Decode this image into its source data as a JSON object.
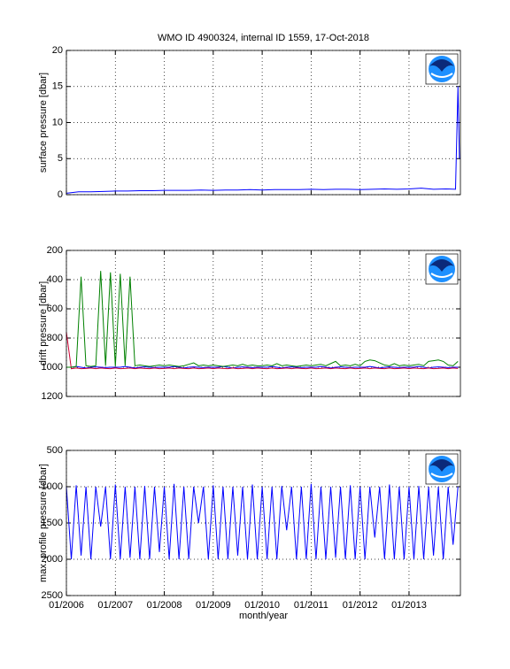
{
  "chart_data": [
    {
      "type": "line",
      "title": "WMO ID 4900324, internal ID 1559, 17-Oct-2018",
      "y_label": "surface pressure [dbar]",
      "x": [
        2006,
        2006.25,
        2006.5,
        2006.75,
        2007,
        2007.25,
        2007.5,
        2007.75,
        2008,
        2008.25,
        2008.5,
        2008.75,
        2009,
        2009.25,
        2009.5,
        2009.75,
        2010,
        2010.25,
        2010.5,
        2010.75,
        2011,
        2011.25,
        2011.5,
        2011.75,
        2012,
        2012.25,
        2012.5,
        2012.75,
        2013,
        2013.25,
        2013.5,
        2013.75,
        2013.95,
        2014,
        2014.03
      ],
      "series": [
        {
          "color": "#0000ff",
          "values": [
            0.2,
            0.4,
            0.4,
            0.45,
            0.5,
            0.5,
            0.55,
            0.55,
            0.6,
            0.6,
            0.6,
            0.65,
            0.6,
            0.65,
            0.65,
            0.7,
            0.65,
            0.7,
            0.7,
            0.7,
            0.75,
            0.7,
            0.75,
            0.75,
            0.7,
            0.75,
            0.8,
            0.75,
            0.8,
            0.9,
            0.75,
            0.8,
            0.75,
            15,
            5
          ]
        }
      ],
      "xlim": [
        2006,
        2014.05
      ],
      "xticks": [
        2006,
        2007,
        2008,
        2009,
        2010,
        2011,
        2012,
        2013
      ],
      "ylim": [
        0,
        20
      ],
      "yticks": [
        0,
        5,
        10,
        15,
        20
      ],
      "grid": true
    },
    {
      "type": "line",
      "y_label": "drift pressure [dbar]",
      "x": [
        2006,
        2006.1,
        2006.2,
        2006.3,
        2006.4,
        2006.5,
        2006.6,
        2006.7,
        2006.8,
        2006.9,
        2007,
        2007.1,
        2007.2,
        2007.3,
        2007.4,
        2007.5,
        2007.6,
        2007.7,
        2007.8,
        2007.9,
        2008,
        2008.1,
        2008.2,
        2008.3,
        2008.4,
        2008.5,
        2008.6,
        2008.7,
        2008.8,
        2008.9,
        2009,
        2009.1,
        2009.2,
        2009.3,
        2009.4,
        2009.5,
        2009.6,
        2009.7,
        2009.8,
        2009.9,
        2010,
        2010.1,
        2010.2,
        2010.3,
        2010.4,
        2010.5,
        2010.6,
        2010.7,
        2010.8,
        2010.9,
        2011,
        2011.1,
        2011.2,
        2011.3,
        2011.4,
        2011.5,
        2011.6,
        2011.7,
        2011.8,
        2011.9,
        2012,
        2012.1,
        2012.2,
        2012.3,
        2012.4,
        2012.5,
        2012.6,
        2012.7,
        2012.8,
        2012.9,
        2013,
        2013.1,
        2013.2,
        2013.3,
        2013.4,
        2013.5,
        2013.6,
        2013.7,
        2013.8,
        2013.9,
        2014
      ],
      "series": [
        {
          "color": "#0000ff",
          "values": [
            1000,
            1000,
            995,
            1000,
            1005,
            1000,
            998,
            1000,
            1002,
            1000,
            1000,
            1000,
            995,
            1000,
            1005,
            1000,
            998,
            1000,
            1002,
            1000,
            1000,
            1000,
            995,
            1000,
            1005,
            1000,
            998,
            1000,
            1002,
            1000,
            1000,
            1000,
            995,
            1000,
            1005,
            1000,
            998,
            1000,
            1002,
            1000,
            1000,
            1000,
            995,
            1000,
            1005,
            1000,
            998,
            1000,
            1002,
            1000,
            1000,
            1000,
            995,
            1000,
            1005,
            1000,
            998,
            1000,
            1002,
            1000,
            1000,
            1000,
            995,
            1000,
            1005,
            1000,
            998,
            1000,
            1002,
            1000,
            1000,
            1000,
            995,
            1000,
            1005,
            1000,
            998,
            1000,
            1002,
            1000,
            1000
          ]
        },
        {
          "color": "#cc0033",
          "values": [
            760,
            1010,
            1005,
            1010,
            1008,
            1005,
            1010,
            1005,
            1008,
            1010,
            1005,
            1010,
            1008,
            1005,
            1010,
            1005,
            1008,
            1010,
            1005,
            1010,
            1008,
            1005,
            1010,
            1005,
            1008,
            1010,
            1005,
            1010,
            1008,
            1005,
            1010,
            1005,
            1008,
            1010,
            1005,
            1010,
            1008,
            1005,
            1010,
            1005,
            1008,
            1010,
            1005,
            1010,
            1008,
            1005,
            1010,
            1005,
            1008,
            1010,
            1005,
            1010,
            1008,
            1005,
            1010,
            1005,
            1008,
            1010,
            1005,
            1010,
            1008,
            1005,
            1010,
            1005,
            1008,
            1010,
            1005,
            1010,
            1008,
            1005,
            1010,
            1005,
            1008,
            1010,
            1005,
            1010,
            1008,
            1005,
            1010,
            1005,
            1008
          ]
        },
        {
          "color": "#008000",
          "values": [
            1000,
            1000,
            995,
            380,
            990,
            995,
            990,
            340,
            990,
            350,
            995,
            360,
            990,
            380,
            990,
            985,
            990,
            995,
            990,
            985,
            990,
            985,
            990,
            995,
            990,
            980,
            970,
            990,
            985,
            990,
            985,
            990,
            995,
            990,
            985,
            990,
            980,
            990,
            985,
            990,
            990,
            985,
            990,
            975,
            990,
            985,
            990,
            995,
            990,
            985,
            990,
            985,
            980,
            990,
            975,
            960,
            990,
            985,
            990,
            980,
            990,
            960,
            950,
            955,
            970,
            985,
            990,
            975,
            990,
            985,
            990,
            985,
            980,
            990,
            960,
            955,
            950,
            960,
            985,
            990,
            960
          ]
        }
      ],
      "xlim": [
        2006,
        2014.05
      ],
      "xticks": [
        2006,
        2007,
        2008,
        2009,
        2010,
        2011,
        2012,
        2013
      ],
      "ylim": [
        1200,
        200
      ],
      "yticks": [
        200,
        400,
        600,
        800,
        1000,
        1200
      ],
      "grid": true
    },
    {
      "type": "line",
      "y_label": "max. profile pressure [dbar]",
      "x_label": "month/year",
      "x": [
        2006,
        2006.1,
        2006.2,
        2006.3,
        2006.4,
        2006.5,
        2006.6,
        2006.7,
        2006.8,
        2006.9,
        2007,
        2007.1,
        2007.2,
        2007.3,
        2007.4,
        2007.5,
        2007.6,
        2007.7,
        2007.8,
        2007.9,
        2008,
        2008.1,
        2008.2,
        2008.3,
        2008.4,
        2008.5,
        2008.6,
        2008.7,
        2008.8,
        2008.9,
        2009,
        2009.1,
        2009.2,
        2009.3,
        2009.4,
        2009.5,
        2009.6,
        2009.7,
        2009.8,
        2009.9,
        2010,
        2010.1,
        2010.2,
        2010.3,
        2010.4,
        2010.5,
        2010.6,
        2010.7,
        2010.8,
        2010.9,
        2011,
        2011.1,
        2011.2,
        2011.3,
        2011.4,
        2011.5,
        2011.6,
        2011.7,
        2011.8,
        2011.9,
        2012,
        2012.1,
        2012.2,
        2012.3,
        2012.4,
        2012.5,
        2012.6,
        2012.7,
        2012.8,
        2012.9,
        2013,
        2013.1,
        2013.2,
        2013.3,
        2013.4,
        2013.5,
        2013.6,
        2013.7,
        2013.8,
        2013.9,
        2014
      ],
      "series": [
        {
          "color": "#0000ff",
          "values": [
            1000,
            2000,
            980,
            1950,
            1000,
            2000,
            1000,
            1550,
            1000,
            2000,
            970,
            2000,
            1000,
            1980,
            1000,
            2000,
            990,
            2000,
            1000,
            1900,
            1000,
            2000,
            960,
            2000,
            1000,
            2000,
            1000,
            1500,
            1000,
            2000,
            980,
            2000,
            1000,
            2000,
            1000,
            1950,
            1000,
            2000,
            970,
            2000,
            1000,
            2000,
            1000,
            2000,
            990,
            1600,
            1000,
            2000,
            1000,
            2000,
            960,
            2000,
            1000,
            2000,
            1000,
            1980,
            1000,
            2000,
            980,
            2000,
            1000,
            2000,
            1000,
            1700,
            1000,
            2000,
            970,
            2000,
            1000,
            2000,
            1000,
            2000,
            990,
            2000,
            1000,
            1950,
            1000,
            2000,
            1000,
            1800,
            1000
          ]
        }
      ],
      "xlim": [
        2006,
        2014.05
      ],
      "xticks": [
        {
          "value": 2006,
          "label": "01/2006"
        },
        {
          "value": 2007,
          "label": "01/2007"
        },
        {
          "value": 2008,
          "label": "01/2008"
        },
        {
          "value": 2009,
          "label": "01/2009"
        },
        {
          "value": 2010,
          "label": "01/2010"
        },
        {
          "value": 2011,
          "label": "01/2011"
        },
        {
          "value": 2012,
          "label": "01/2012"
        },
        {
          "value": 2013,
          "label": "01/2013"
        }
      ],
      "ylim": [
        2500,
        500
      ],
      "yticks": [
        500,
        1000,
        1500,
        2000,
        2500
      ],
      "grid": true
    }
  ]
}
